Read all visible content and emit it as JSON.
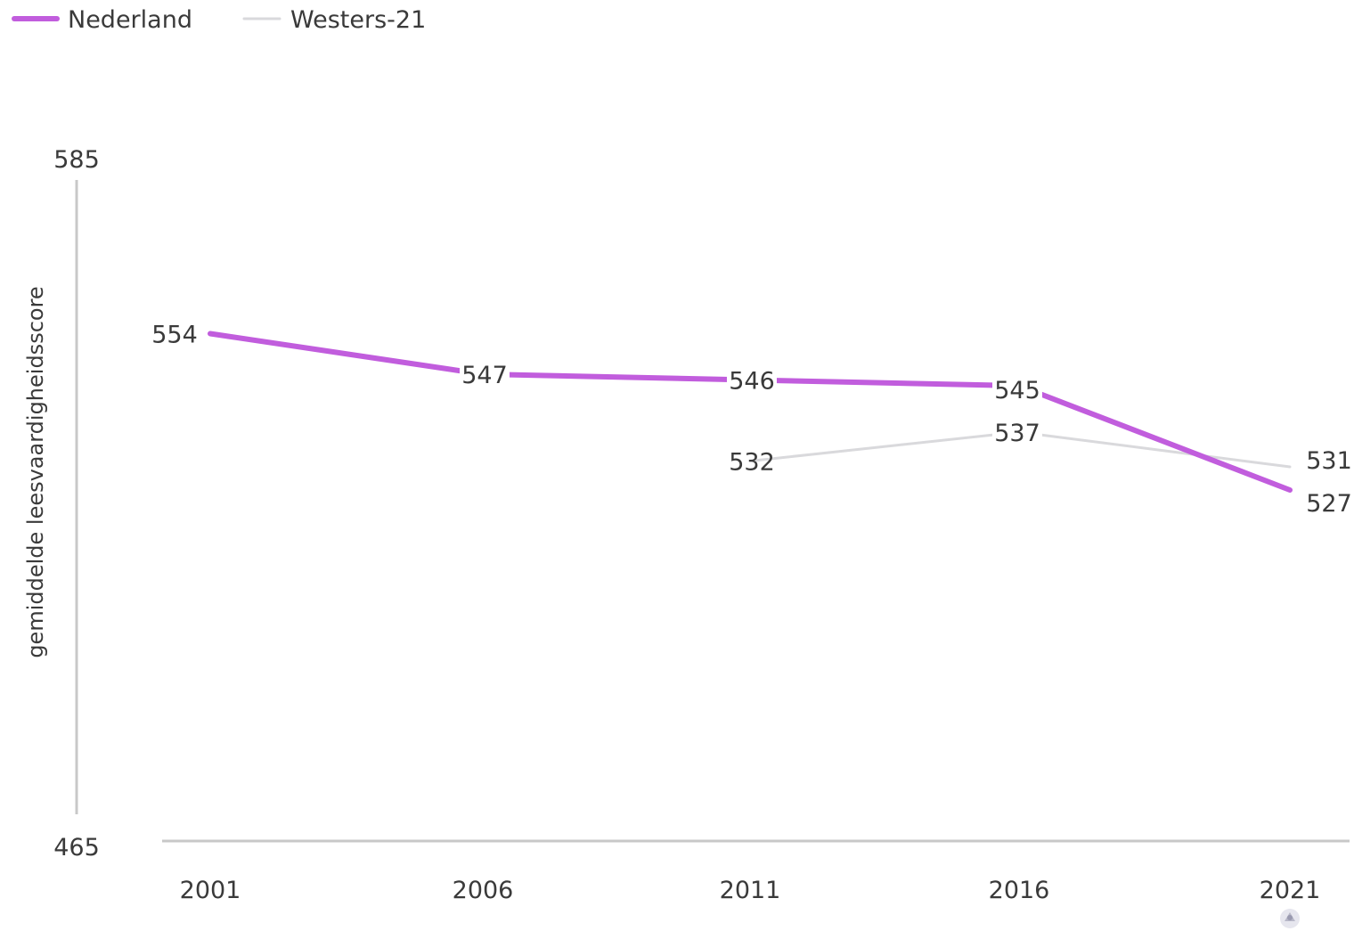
{
  "chart_data": {
    "type": "line",
    "title": "",
    "xlabel": "",
    "ylabel": "gemiddelde leesvaardigheidsscore",
    "categories": [
      "2001",
      "2006",
      "2011",
      "2016",
      "2021"
    ],
    "ylim": [
      465,
      585
    ],
    "y_ticks": [
      "585",
      "465"
    ],
    "grid": false,
    "legend_position": "top-left",
    "series": [
      {
        "name": "Nederland",
        "color": "#c15ddd",
        "values": [
          554,
          547,
          546,
          545,
          527
        ],
        "labels": [
          "554",
          "547",
          "546",
          "545",
          "527"
        ]
      },
      {
        "name": "Westers-21",
        "color": "#d9d9dc",
        "values": [
          null,
          null,
          532,
          537,
          531
        ],
        "labels": [
          "",
          "",
          "532",
          "537",
          "531"
        ]
      }
    ],
    "colors": {
      "axis": "#c8c8c8",
      "text": "#3a3a3a"
    }
  }
}
